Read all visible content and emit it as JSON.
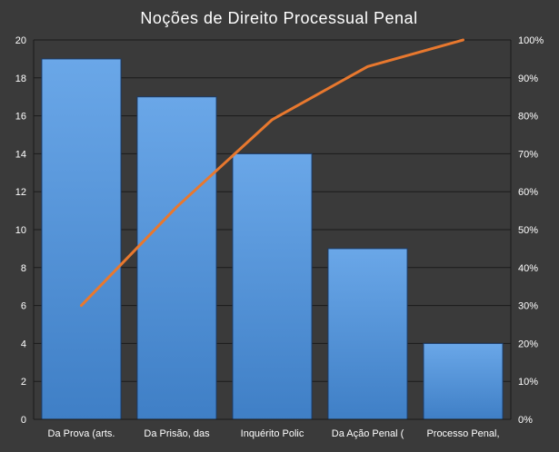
{
  "chart_data": {
    "type": "bar",
    "title": "Noções de Direito Processual Penal",
    "categories": [
      "Da Prova (arts.",
      "Da Prisão, das",
      "Inquérito Polic",
      "Da Ação Penal (",
      "Processo Penal,"
    ],
    "series": [
      {
        "values": [
          19,
          17,
          14,
          9,
          4
        ],
        "color": "#4f8fd6",
        "axis": "left"
      },
      {
        "type": "line",
        "values": [
          30,
          56,
          79,
          93,
          100
        ],
        "color": "#e8782e",
        "axis": "right",
        "unit": "%"
      }
    ],
    "ylim": [
      0,
      20
    ],
    "yticks": [
      "0",
      "2",
      "4",
      "6",
      "8",
      "10",
      "12",
      "14",
      "16",
      "18",
      "20"
    ],
    "y2lim": [
      0,
      100
    ],
    "y2ticks": [
      "0%",
      "10%",
      "20%",
      "30%",
      "40%",
      "50%",
      "60%",
      "70%",
      "80%",
      "90%",
      "100%"
    ],
    "grid": true,
    "legend": "none",
    "colors": {
      "background": "#3a3a3a",
      "grid": "#1a1a1a",
      "text": "#ffffff"
    }
  }
}
